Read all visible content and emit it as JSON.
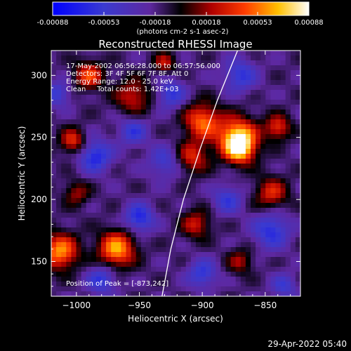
{
  "chart_data": {
    "type": "heatmap",
    "title": "Reconstructed RHESSI Image",
    "xlabel": "Heliocentric X (arcsec)",
    "ylabel": "Heliocentric Y (arcsec)",
    "xlim": [
      -1020,
      -822
    ],
    "ylim": [
      122,
      320
    ],
    "x_ticks": [
      -1000,
      -950,
      -900,
      -850
    ],
    "y_ticks": [
      150,
      200,
      250,
      300
    ],
    "colorbar": {
      "min": -0.00088,
      "max": 0.00088,
      "ticks": [
        "-0.00088",
        "-0.00053",
        "-0.00018",
        "0.00018",
        "0.00053",
        "0.00088"
      ],
      "units": "(photons cm-2 s-1 asec-2)"
    },
    "annotations": [
      "17-May-2002 06:56:28.000 to 06:57:56.000",
      "Detectors: 3F 4F 5F 6F 7F 8F, Att 0",
      "Energy Range: 12.0 - 25.0 keV",
      "Clean     Total counts: 1.42E+03"
    ],
    "peak_text": "Position of Peak = [-873,242]",
    "peak": [
      -873,
      242
    ],
    "sources": [
      {
        "x": -872,
        "y": 250,
        "sigma": 11,
        "amp": 1.0
      },
      {
        "x": -870,
        "y": 240,
        "sigma": 8,
        "amp": 0.7
      },
      {
        "x": -900,
        "y": 263,
        "sigma": 10,
        "amp": 0.75
      },
      {
        "x": -908,
        "y": 234,
        "sigma": 9,
        "amp": 0.55
      },
      {
        "x": -968,
        "y": 160,
        "sigma": 10,
        "amp": 0.9
      },
      {
        "x": -1013,
        "y": 158,
        "sigma": 10,
        "amp": 0.85
      },
      {
        "x": -990,
        "y": 300,
        "sigma": 8,
        "amp": 0.65
      },
      {
        "x": -1003,
        "y": 247,
        "sigma": 7,
        "amp": 0.6
      },
      {
        "x": -955,
        "y": 283,
        "sigma": 10,
        "amp": 0.5
      },
      {
        "x": -840,
        "y": 258,
        "sigma": 7,
        "amp": 0.6
      },
      {
        "x": -845,
        "y": 205,
        "sigma": 9,
        "amp": 0.55
      },
      {
        "x": -905,
        "y": 180,
        "sigma": 8,
        "amp": 0.5
      },
      {
        "x": -870,
        "y": 150,
        "sigma": 7,
        "amp": 0.4
      },
      {
        "x": -930,
        "y": 310,
        "sigma": 6,
        "amp": 0.45
      },
      {
        "x": -1000,
        "y": 205,
        "sigma": 7,
        "amp": 0.4
      },
      {
        "x": -950,
        "y": 185,
        "sigma": 8,
        "amp": -0.6
      },
      {
        "x": -985,
        "y": 235,
        "sigma": 9,
        "amp": -0.6
      },
      {
        "x": -845,
        "y": 175,
        "sigma": 10,
        "amp": -0.55
      },
      {
        "x": -925,
        "y": 285,
        "sigma": 8,
        "amp": -0.5
      },
      {
        "x": -980,
        "y": 135,
        "sigma": 8,
        "amp": -0.5
      },
      {
        "x": -870,
        "y": 300,
        "sigma": 9,
        "amp": -0.5
      },
      {
        "x": -1015,
        "y": 285,
        "sigma": 7,
        "amp": -0.45
      },
      {
        "x": -930,
        "y": 230,
        "sigma": 9,
        "amp": -0.4
      },
      {
        "x": -880,
        "y": 200,
        "sigma": 8,
        "amp": -0.45
      },
      {
        "x": -900,
        "y": 140,
        "sigma": 8,
        "amp": -0.5
      },
      {
        "x": -835,
        "y": 130,
        "sigma": 7,
        "amp": -0.4
      },
      {
        "x": -955,
        "y": 255,
        "sigma": 8,
        "amp": -0.45
      }
    ],
    "limb_curve": [
      [
        -932,
        122
      ],
      [
        -925,
        160
      ],
      [
        -915,
        200
      ],
      [
        -902,
        240
      ],
      [
        -888,
        280
      ],
      [
        -872,
        320
      ]
    ]
  },
  "footer_date": "29-Apr-2022 05:40"
}
